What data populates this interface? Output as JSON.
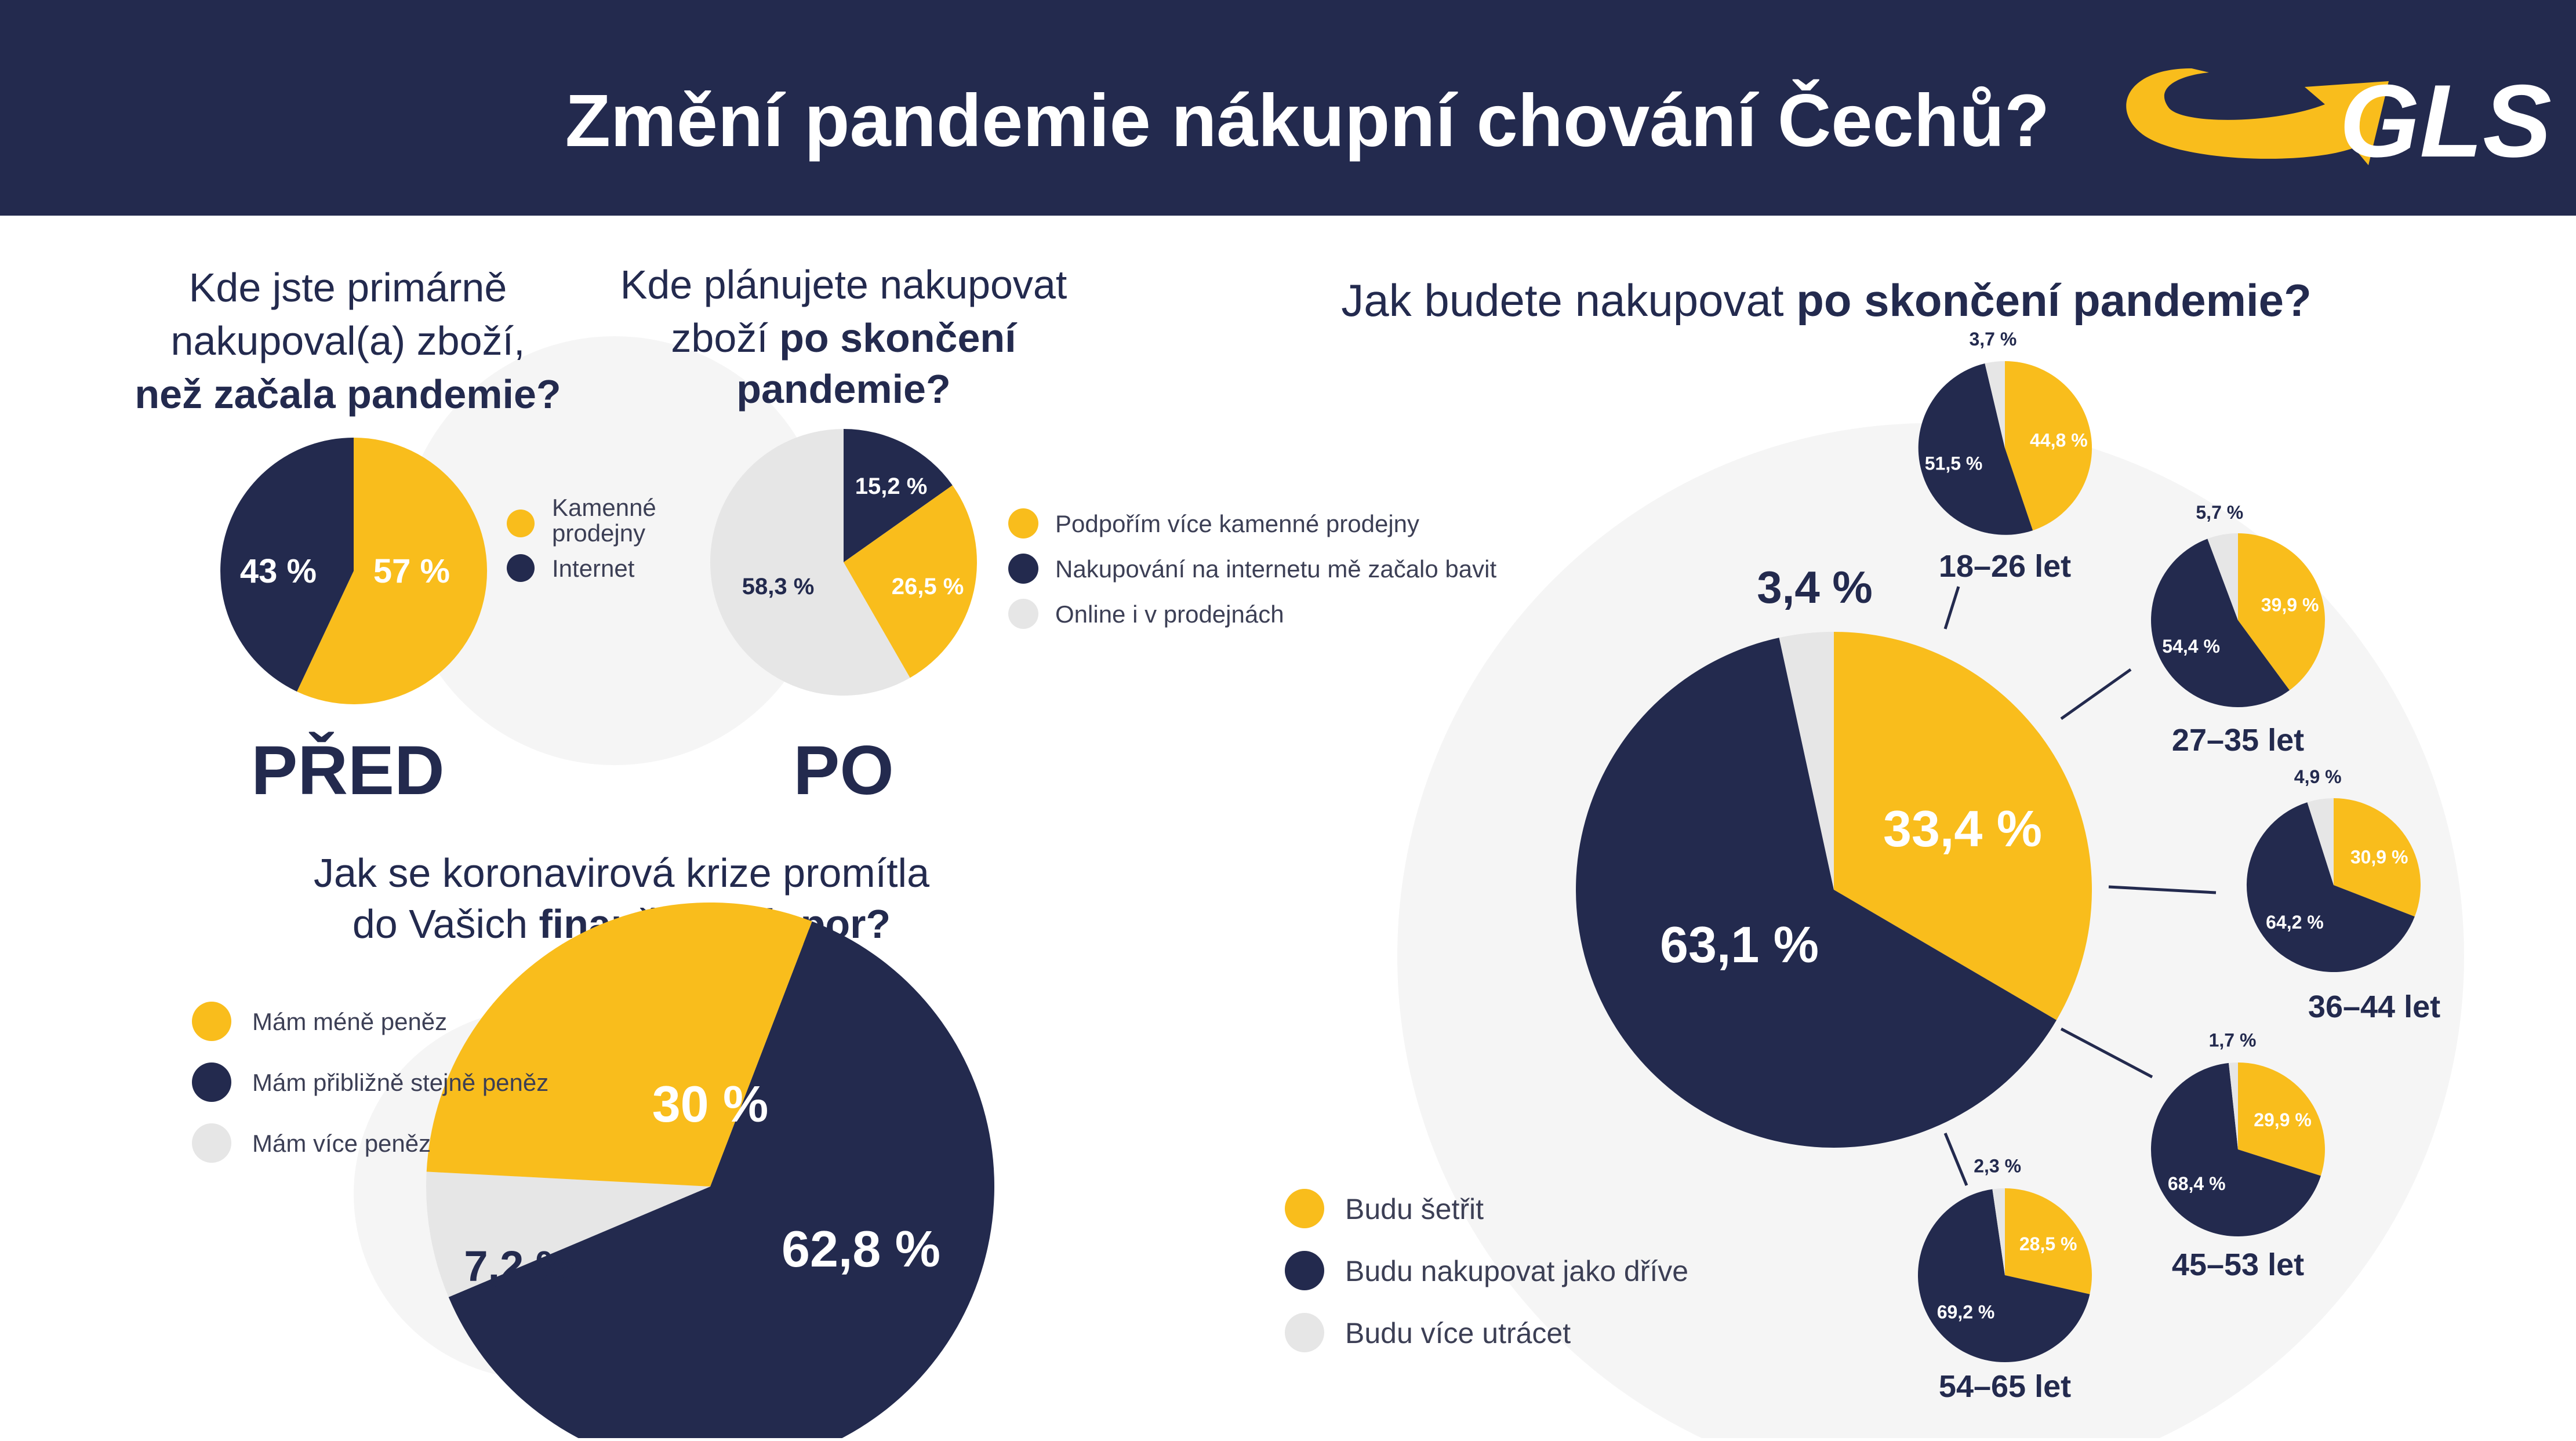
{
  "header": {
    "title": "Změní pandemie nákupní chování Čechů?",
    "logo_text": "GLS"
  },
  "colors": {
    "navy": "#232a4e",
    "yellow": "#f9bd1c",
    "light": "#e6e6e6",
    "halo": "#f5f5f5",
    "white": "#ffffff"
  },
  "chart_data": [
    {
      "type": "pie",
      "title": [
        "Kde jste primárně",
        "nakupoval(a) zboží,",
        "než začala pandemie?"
      ],
      "title_bold_line": 2,
      "caption": "PŘED",
      "legend": [
        "Kamenné prodejny",
        "Internet"
      ],
      "slices": [
        {
          "label": "Kamenné prodejny",
          "value": 57,
          "display": "57 %",
          "color": "yellow"
        },
        {
          "label": "Internet",
          "value": 43,
          "display": "43 %",
          "color": "navy"
        }
      ]
    },
    {
      "type": "pie",
      "title": [
        "Kde plánujete nakupovat",
        "zboží po skončení",
        "pandemie?"
      ],
      "caption": "PO",
      "legend": [
        "Podpořím více kamenné prodejny",
        "Nakupování na internetu mě začalo bavit",
        "Online i v prodejnách"
      ],
      "slices": [
        {
          "label": "Nakupování na internetu mě začalo bavit",
          "value": 15.2,
          "display": "15,2 %",
          "color": "navy"
        },
        {
          "label": "Podpořím více kamenné prodejny",
          "value": 26.5,
          "display": "26,5 %",
          "color": "yellow"
        },
        {
          "label": "Online i v prodejnách",
          "value": 58.3,
          "display": "58,3 %",
          "color": "light"
        }
      ]
    },
    {
      "type": "pie",
      "title": [
        "Jak se koronavirová krize promítla",
        "do Vašich finančních úspor?"
      ],
      "legend": [
        "Mám méně peněz",
        "Mám přibližně stejně peněz",
        "Mám více peněz"
      ],
      "slices": [
        {
          "label": "Mám přibližně stejně peněz",
          "value": 62.8,
          "display": "62,8 %",
          "color": "navy"
        },
        {
          "label": "Mám více peněz",
          "value": 7.2,
          "display": "7,2 %",
          "color": "light"
        },
        {
          "label": "Mám méně peněz",
          "value": 30,
          "display": "30 %",
          "color": "yellow"
        }
      ]
    },
    {
      "type": "pie",
      "title": [
        "Jak budete nakupovat",
        "po skončení pandemie?"
      ],
      "legend": [
        "Budu šetřit",
        "Budu nakupovat jako dříve",
        "Budu více utrácet"
      ],
      "slices": [
        {
          "label": "Budu šetřit",
          "value": 33.4,
          "display": "33,4 %",
          "color": "yellow"
        },
        {
          "label": "Budu nakupovat jako dříve",
          "value": 63.1,
          "display": "63,1 %",
          "color": "navy"
        },
        {
          "label": "Budu více utrácet",
          "value": 3.4,
          "display": "3,4 %",
          "color": "light"
        }
      ],
      "age_groups": [
        {
          "age": "18–26 let",
          "saving": 44.8,
          "same": 51.5,
          "more": 3.7,
          "saving_display": "44,8 %",
          "same_display": "51,5 %",
          "more_display": "3,7 %"
        },
        {
          "age": "27–35 let",
          "saving": 39.9,
          "same": 54.4,
          "more": 5.7,
          "saving_display": "39,9 %",
          "same_display": "54,4 %",
          "more_display": "5,7 %"
        },
        {
          "age": "36–44 let",
          "saving": 30.9,
          "same": 64.2,
          "more": 4.9,
          "saving_display": "30,9 %",
          "same_display": "64,2 %",
          "more_display": "4,9 %"
        },
        {
          "age": "45–53 let",
          "saving": 29.9,
          "same": 68.4,
          "more": 1.7,
          "saving_display": "29,9 %",
          "same_display": "68,4 %",
          "more_display": "1,7 %"
        },
        {
          "age": "54–65 let",
          "saving": 28.5,
          "same": 69.2,
          "more": 2.3,
          "saving_display": "28,5 %",
          "same_display": "69,2 %",
          "more_display": "2,3 %"
        }
      ]
    }
  ]
}
